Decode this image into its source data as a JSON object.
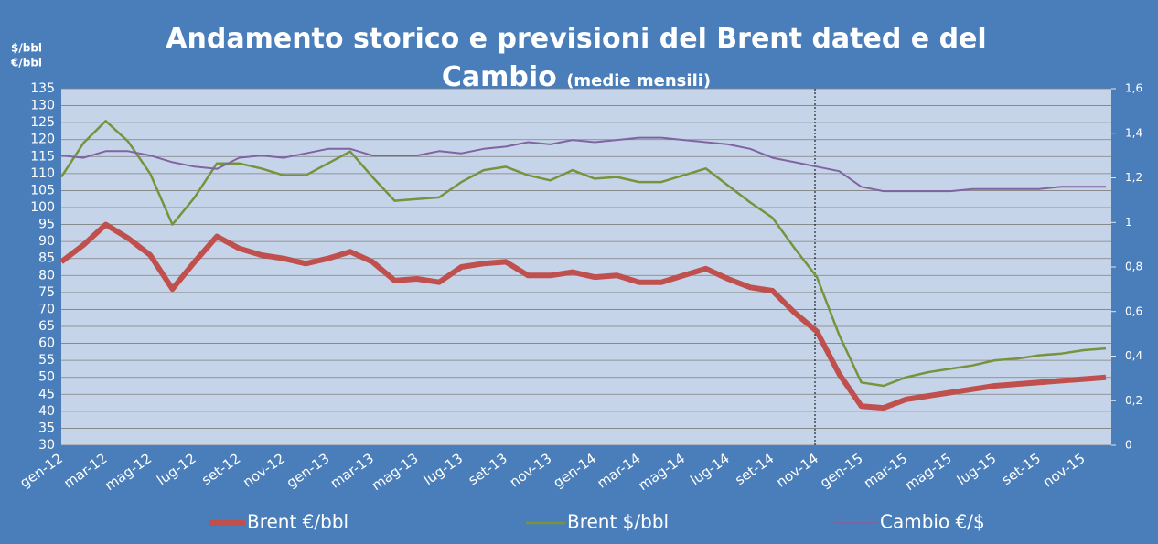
{
  "chart_data": {
    "type": "line",
    "title": "Andamento storico e previsioni del Brent dated e del Cambio",
    "subtitle": "(medie mensili)",
    "y_units": [
      "$/bbl",
      "€/bbl"
    ],
    "categories": [
      "gen-12",
      null,
      "mar-12",
      null,
      "mag-12",
      null,
      "lug-12",
      null,
      "set-12",
      null,
      "nov-12",
      null,
      "gen-13",
      null,
      "mar-13",
      null,
      "mag-13",
      null,
      "lug-13",
      null,
      "set-13",
      null,
      "nov-13",
      null,
      "gen-14",
      null,
      "mar-14",
      null,
      "mag-14",
      null,
      "lug-14",
      null,
      "set-14",
      null,
      "nov-14",
      null,
      "gen-15",
      null,
      "mar-15",
      null,
      "mag-15",
      null,
      "lug-15",
      null,
      "set-15",
      null,
      "nov-15",
      null
    ],
    "series": [
      {
        "name": "Brent €/bbl",
        "color": "#c0504d",
        "width": 6,
        "axis": "y",
        "values": [
          84,
          89,
          95,
          91,
          86,
          76,
          84,
          91.5,
          88,
          86,
          85,
          83.5,
          85,
          87,
          84,
          78.5,
          79,
          78,
          82.5,
          83.5,
          84,
          80,
          80,
          81,
          79.5,
          80,
          78,
          78,
          80,
          82,
          79,
          76.5,
          75.5,
          69,
          63.5,
          51,
          41.5,
          41,
          43.5,
          44.5,
          45.5,
          46.5,
          47.5,
          48,
          48.5,
          49,
          49.5,
          50
        ]
      },
      {
        "name": "Brent $/bbl",
        "color": "#77933c",
        "width": 2.5,
        "axis": "y",
        "values": [
          109,
          119,
          125.5,
          119.5,
          110,
          95,
          103,
          113,
          113,
          111.5,
          109.5,
          109.5,
          113,
          116.5,
          109,
          102,
          102.5,
          103,
          107.5,
          111,
          112,
          109.5,
          108,
          111,
          108.5,
          109,
          107.5,
          107.5,
          109.5,
          111.5,
          106.5,
          101.5,
          97,
          88,
          79.5,
          62.5,
          48.5,
          47.5,
          50,
          51.5,
          52.5,
          53.5,
          55,
          55.5,
          56.5,
          57,
          58,
          58.5
        ]
      },
      {
        "name": "Cambio €/$",
        "color": "#8064a2",
        "width": 2,
        "axis": "y2",
        "values": [
          1.3,
          1.29,
          1.32,
          1.32,
          1.3,
          1.27,
          1.25,
          1.24,
          1.29,
          1.3,
          1.29,
          1.31,
          1.33,
          1.33,
          1.3,
          1.3,
          1.3,
          1.32,
          1.31,
          1.33,
          1.34,
          1.36,
          1.35,
          1.37,
          1.36,
          1.37,
          1.38,
          1.38,
          1.37,
          1.36,
          1.35,
          1.33,
          1.29,
          1.27,
          1.25,
          1.23,
          1.16,
          1.14,
          1.14,
          1.14,
          1.14,
          1.15,
          1.15,
          1.15,
          1.15,
          1.16,
          1.16,
          1.16
        ]
      }
    ],
    "ylim": [
      30,
      135
    ],
    "yticks": [
      30,
      35,
      40,
      45,
      50,
      55,
      60,
      65,
      70,
      75,
      80,
      85,
      90,
      95,
      100,
      105,
      110,
      115,
      120,
      125,
      130,
      135
    ],
    "y2lim": [
      0,
      1.6
    ],
    "y2ticks": [
      0,
      {
        "value": 0.2,
        "label": "0,2"
      },
      {
        "value": 0.4,
        "label": "0,4"
      },
      {
        "value": 0.6,
        "label": "0,6"
      },
      {
        "value": 0.8,
        "label": "0,8"
      },
      1,
      {
        "value": 1.2,
        "label": "1,2"
      },
      {
        "value": 1.4,
        "label": "1,4"
      },
      {
        "value": 1.6,
        "label": "1,6"
      }
    ],
    "grid": true,
    "legend": "bottom"
  }
}
